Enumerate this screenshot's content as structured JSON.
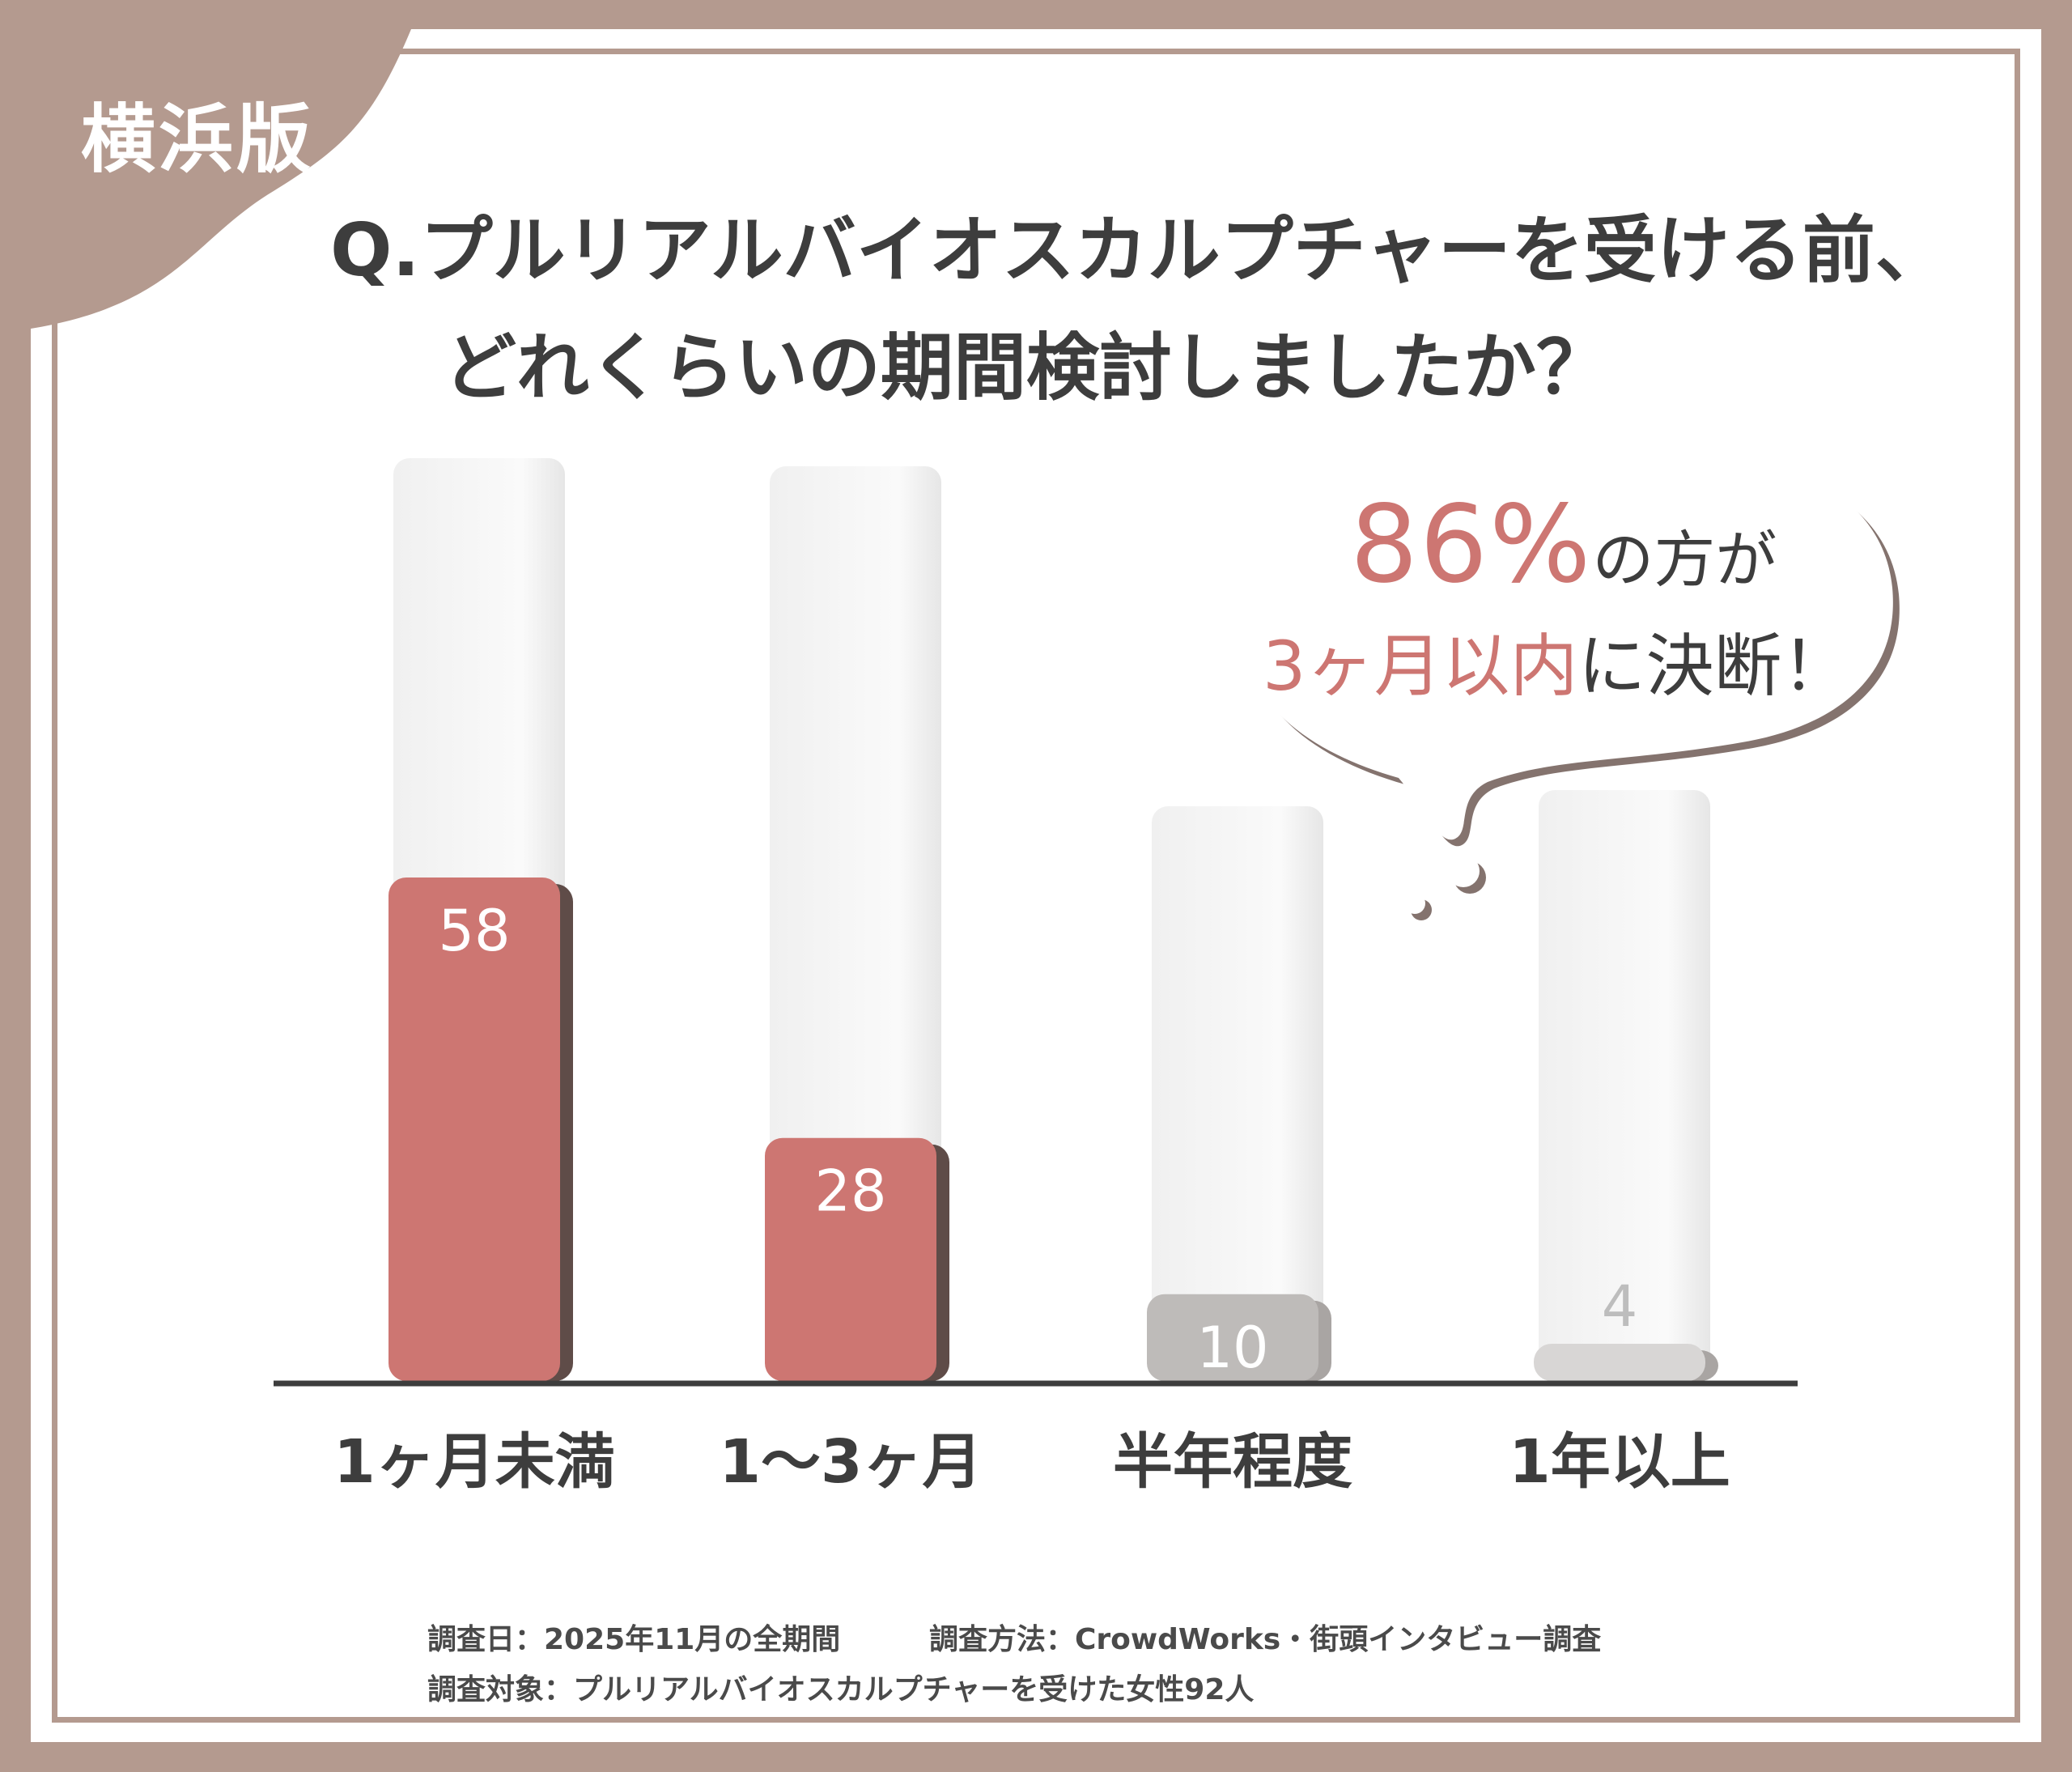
{
  "badge": "横浜版",
  "title": {
    "line1": "Q.プルリアルバイオスカルプチャーを受ける前、",
    "line2": "どれくらいの期間検討しましたか？"
  },
  "callout": {
    "big": "86%",
    "small1": "の方が",
    "emphasis": "3ヶ月以内",
    "rest": "に決断！"
  },
  "chart_data": {
    "type": "bar",
    "categories": [
      "1ヶ月未満",
      "1〜3ヶ月",
      "半年程度",
      "1年以上"
    ],
    "values": [
      58,
      28,
      10,
      4
    ],
    "title": "Q.プルリアルバイオスカルプチャーを受ける前、どれくらいの期間検討しましたか？",
    "xlabel": "",
    "ylabel": "",
    "ylim": [
      0,
      58
    ],
    "grid": false,
    "data_labels": true,
    "colors": [
      "#cd7672",
      "#cd7672",
      "#bebbb9",
      "#d8d6d5"
    ],
    "label_colors": [
      "#ffffff",
      "#ffffff",
      "#ffffff",
      "#bdbdbd"
    ]
  },
  "colors": {
    "accent": "#cd7672",
    "frame": "#b49a8f",
    "text": "#3d3d3d",
    "muted_bar": "#bebbb9",
    "light_bar": "#d8d6d5"
  },
  "footnotes": {
    "date": "調査日：2025年11月の全期間",
    "method": "調査方法：CrowdWorks・街頭インタビュー調査",
    "target": "調査対象：プルリアルバイオスカルプチャーを受けた女性92人"
  }
}
